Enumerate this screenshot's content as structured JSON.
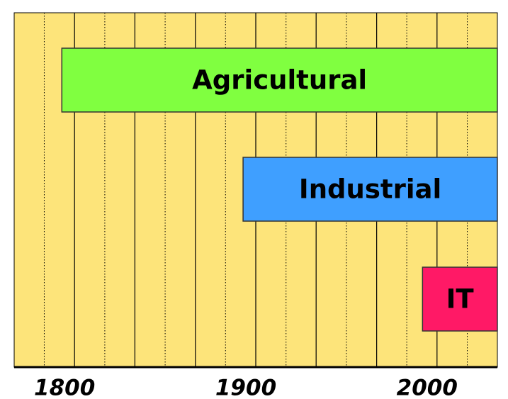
{
  "chart_data": {
    "type": "timeline",
    "categories": [
      "Agricultural",
      "Industrial",
      "IT"
    ],
    "start": [
      1793,
      1893,
      1992
    ],
    "end": [
      2033.3,
      2033.3,
      2033.3
    ],
    "colors": [
      "#80ff40",
      "#3f9fff",
      "#ff1966"
    ],
    "xlim": [
      1766.7,
      2033.3
    ],
    "xticks": [
      1800,
      1900,
      2000
    ],
    "xgrid_major": [
      1800,
      1833.3,
      1866.7,
      1900,
      1933.3,
      1966.7,
      2000
    ],
    "xgrid_minor": [
      1783.3,
      1816.7,
      1850,
      1883.3,
      1916.7,
      1950,
      1983.3,
      2016.7
    ],
    "background": "#fde47a"
  }
}
